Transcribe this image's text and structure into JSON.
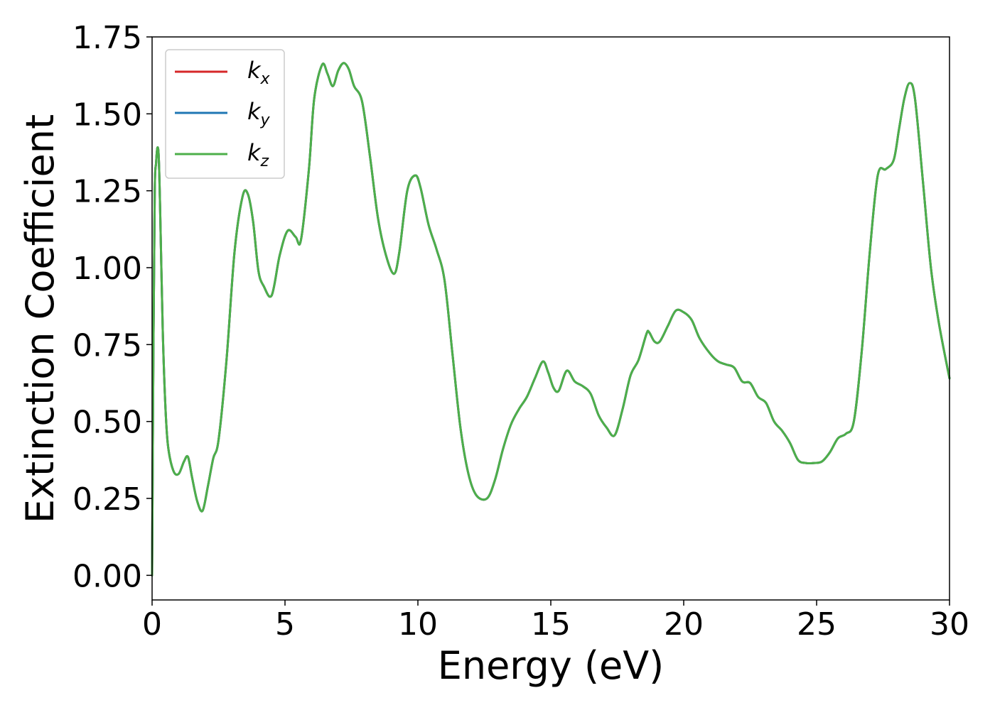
{
  "chart_data": {
    "type": "line",
    "xlabel": "Energy (eV)",
    "ylabel": "Extinction Coefficient",
    "xlim": [
      0,
      30
    ],
    "ylim": [
      -0.08,
      1.75
    ],
    "xticks": [
      0,
      5,
      10,
      15,
      20,
      25,
      30
    ],
    "xtick_labels": [
      "0",
      "5",
      "10",
      "15",
      "20",
      "25",
      "30"
    ],
    "yticks": [
      0.0,
      0.25,
      0.5,
      0.75,
      1.0,
      1.25,
      1.5,
      1.75
    ],
    "ytick_labels": [
      "0.00",
      "0.25",
      "0.50",
      "0.75",
      "1.00",
      "1.25",
      "1.50",
      "1.75"
    ],
    "grid": false,
    "legend_position": "top-left",
    "series": [
      {
        "name": "k",
        "subscript": "x",
        "color": "#d62728",
        "x": [
          0,
          0.05,
          0.1,
          0.15,
          0.2,
          0.25,
          0.3,
          0.4,
          0.5,
          0.6,
          0.8,
          1.0,
          1.2,
          1.35,
          1.5,
          1.7,
          1.9,
          2.1,
          2.3,
          2.5,
          2.8,
          3.1,
          3.4,
          3.6,
          3.8,
          4.0,
          4.2,
          4.5,
          4.8,
          5.1,
          5.4,
          5.6,
          5.9,
          6.1,
          6.4,
          6.6,
          6.8,
          7.0,
          7.2,
          7.4,
          7.6,
          7.9,
          8.2,
          8.5,
          8.8,
          9.1,
          9.3,
          9.6,
          9.9,
          10.1,
          10.4,
          10.7,
          11.0,
          11.3,
          11.6,
          11.9,
          12.2,
          12.6,
          12.9,
          13.2,
          13.5,
          13.8,
          14.1,
          14.4,
          14.7,
          14.9,
          15.1,
          15.3,
          15.6,
          15.9,
          16.2,
          16.5,
          16.8,
          17.1,
          17.4,
          17.7,
          18.0,
          18.3,
          18.6,
          18.7,
          18.9,
          19.1,
          19.4,
          19.7,
          20.0,
          20.3,
          20.6,
          21.0,
          21.3,
          21.6,
          21.9,
          22.2,
          22.5,
          22.8,
          23.1,
          23.4,
          23.7,
          24.0,
          24.3,
          24.6,
          24.9,
          25.2,
          25.5,
          25.8,
          26.1,
          26.4,
          26.7,
          27.0,
          27.3,
          27.6,
          27.9,
          28.1,
          28.3,
          28.5,
          28.7,
          29.0,
          29.3,
          29.6,
          30.0
        ],
        "y": [
          0.0,
          0.75,
          1.25,
          1.34,
          1.39,
          1.36,
          1.2,
          0.8,
          0.55,
          0.42,
          0.34,
          0.33,
          0.37,
          0.385,
          0.32,
          0.24,
          0.21,
          0.29,
          0.38,
          0.44,
          0.7,
          1.05,
          1.23,
          1.24,
          1.15,
          0.99,
          0.94,
          0.91,
          1.04,
          1.12,
          1.1,
          1.09,
          1.32,
          1.55,
          1.66,
          1.63,
          1.59,
          1.64,
          1.665,
          1.645,
          1.59,
          1.54,
          1.36,
          1.16,
          1.04,
          0.98,
          1.05,
          1.25,
          1.3,
          1.26,
          1.14,
          1.06,
          0.96,
          0.72,
          0.48,
          0.33,
          0.26,
          0.25,
          0.31,
          0.41,
          0.49,
          0.54,
          0.58,
          0.64,
          0.695,
          0.66,
          0.61,
          0.6,
          0.665,
          0.63,
          0.615,
          0.59,
          0.52,
          0.48,
          0.455,
          0.54,
          0.65,
          0.7,
          0.785,
          0.79,
          0.76,
          0.76,
          0.81,
          0.86,
          0.855,
          0.83,
          0.77,
          0.72,
          0.695,
          0.685,
          0.675,
          0.63,
          0.625,
          0.58,
          0.56,
          0.5,
          0.47,
          0.43,
          0.375,
          0.365,
          0.365,
          0.37,
          0.4,
          0.445,
          0.46,
          0.5,
          0.73,
          1.05,
          1.3,
          1.32,
          1.35,
          1.45,
          1.55,
          1.6,
          1.55,
          1.28,
          1.0,
          0.82,
          0.64
        ]
      },
      {
        "name": "k",
        "subscript": "y",
        "color": "#1f77b4",
        "x": [
          0,
          0.05,
          0.1,
          0.15,
          0.2,
          0.25,
          0.3,
          0.4,
          0.5,
          0.6,
          0.8,
          1.0,
          1.2,
          1.35,
          1.5,
          1.7,
          1.9,
          2.1,
          2.3,
          2.5,
          2.8,
          3.1,
          3.4,
          3.6,
          3.8,
          4.0,
          4.2,
          4.5,
          4.8,
          5.1,
          5.4,
          5.6,
          5.9,
          6.1,
          6.4,
          6.6,
          6.8,
          7.0,
          7.2,
          7.4,
          7.6,
          7.9,
          8.2,
          8.5,
          8.8,
          9.1,
          9.3,
          9.6,
          9.9,
          10.1,
          10.4,
          10.7,
          11.0,
          11.3,
          11.6,
          11.9,
          12.2,
          12.6,
          12.9,
          13.2,
          13.5,
          13.8,
          14.1,
          14.4,
          14.7,
          14.9,
          15.1,
          15.3,
          15.6,
          15.9,
          16.2,
          16.5,
          16.8,
          17.1,
          17.4,
          17.7,
          18.0,
          18.3,
          18.6,
          18.7,
          18.9,
          19.1,
          19.4,
          19.7,
          20.0,
          20.3,
          20.6,
          21.0,
          21.3,
          21.6,
          21.9,
          22.2,
          22.5,
          22.8,
          23.1,
          23.4,
          23.7,
          24.0,
          24.3,
          24.6,
          24.9,
          25.2,
          25.5,
          25.8,
          26.1,
          26.4,
          26.7,
          27.0,
          27.3,
          27.6,
          27.9,
          28.1,
          28.3,
          28.5,
          28.7,
          29.0,
          29.3,
          29.6,
          30.0
        ],
        "y": [
          0.0,
          0.75,
          1.25,
          1.34,
          1.39,
          1.36,
          1.2,
          0.8,
          0.55,
          0.42,
          0.34,
          0.33,
          0.37,
          0.385,
          0.32,
          0.24,
          0.21,
          0.29,
          0.38,
          0.44,
          0.7,
          1.05,
          1.23,
          1.24,
          1.15,
          0.99,
          0.94,
          0.91,
          1.04,
          1.12,
          1.1,
          1.09,
          1.32,
          1.55,
          1.66,
          1.63,
          1.59,
          1.64,
          1.665,
          1.645,
          1.59,
          1.54,
          1.36,
          1.16,
          1.04,
          0.98,
          1.05,
          1.25,
          1.3,
          1.26,
          1.14,
          1.06,
          0.96,
          0.72,
          0.48,
          0.33,
          0.26,
          0.25,
          0.31,
          0.41,
          0.49,
          0.54,
          0.58,
          0.64,
          0.695,
          0.66,
          0.61,
          0.6,
          0.665,
          0.63,
          0.615,
          0.59,
          0.52,
          0.48,
          0.455,
          0.54,
          0.65,
          0.7,
          0.785,
          0.79,
          0.76,
          0.76,
          0.81,
          0.86,
          0.855,
          0.83,
          0.77,
          0.72,
          0.695,
          0.685,
          0.675,
          0.63,
          0.625,
          0.58,
          0.56,
          0.5,
          0.47,
          0.43,
          0.375,
          0.365,
          0.365,
          0.37,
          0.4,
          0.445,
          0.46,
          0.5,
          0.73,
          1.05,
          1.3,
          1.32,
          1.35,
          1.45,
          1.55,
          1.6,
          1.55,
          1.28,
          1.0,
          0.82,
          0.64
        ]
      },
      {
        "name": "k",
        "subscript": "z",
        "color": "#4daf4a",
        "x": [
          0,
          0.05,
          0.1,
          0.15,
          0.2,
          0.25,
          0.3,
          0.4,
          0.5,
          0.6,
          0.8,
          1.0,
          1.2,
          1.35,
          1.5,
          1.7,
          1.9,
          2.1,
          2.3,
          2.5,
          2.8,
          3.1,
          3.4,
          3.6,
          3.8,
          4.0,
          4.2,
          4.5,
          4.8,
          5.1,
          5.4,
          5.6,
          5.9,
          6.1,
          6.4,
          6.6,
          6.8,
          7.0,
          7.2,
          7.4,
          7.6,
          7.9,
          8.2,
          8.5,
          8.8,
          9.1,
          9.3,
          9.6,
          9.9,
          10.1,
          10.4,
          10.7,
          11.0,
          11.3,
          11.6,
          11.9,
          12.2,
          12.6,
          12.9,
          13.2,
          13.5,
          13.8,
          14.1,
          14.4,
          14.7,
          14.9,
          15.1,
          15.3,
          15.6,
          15.9,
          16.2,
          16.5,
          16.8,
          17.1,
          17.4,
          17.7,
          18.0,
          18.3,
          18.6,
          18.7,
          18.9,
          19.1,
          19.4,
          19.7,
          20.0,
          20.3,
          20.6,
          21.0,
          21.3,
          21.6,
          21.9,
          22.2,
          22.5,
          22.8,
          23.1,
          23.4,
          23.7,
          24.0,
          24.3,
          24.6,
          24.9,
          25.2,
          25.5,
          25.8,
          26.1,
          26.4,
          26.7,
          27.0,
          27.3,
          27.6,
          27.9,
          28.1,
          28.3,
          28.5,
          28.7,
          29.0,
          29.3,
          29.6,
          30.0
        ],
        "y": [
          0.0,
          0.75,
          1.25,
          1.34,
          1.39,
          1.36,
          1.2,
          0.8,
          0.55,
          0.42,
          0.34,
          0.33,
          0.37,
          0.385,
          0.32,
          0.24,
          0.21,
          0.29,
          0.38,
          0.44,
          0.7,
          1.05,
          1.23,
          1.24,
          1.15,
          0.99,
          0.94,
          0.91,
          1.04,
          1.12,
          1.1,
          1.09,
          1.32,
          1.55,
          1.66,
          1.63,
          1.59,
          1.64,
          1.665,
          1.645,
          1.59,
          1.54,
          1.36,
          1.16,
          1.04,
          0.98,
          1.05,
          1.25,
          1.3,
          1.26,
          1.14,
          1.06,
          0.96,
          0.72,
          0.48,
          0.33,
          0.26,
          0.25,
          0.31,
          0.41,
          0.49,
          0.54,
          0.58,
          0.64,
          0.695,
          0.66,
          0.61,
          0.6,
          0.665,
          0.63,
          0.615,
          0.59,
          0.52,
          0.48,
          0.455,
          0.54,
          0.65,
          0.7,
          0.785,
          0.79,
          0.76,
          0.76,
          0.81,
          0.86,
          0.855,
          0.83,
          0.77,
          0.72,
          0.695,
          0.685,
          0.675,
          0.63,
          0.625,
          0.58,
          0.56,
          0.5,
          0.47,
          0.43,
          0.375,
          0.365,
          0.365,
          0.37,
          0.4,
          0.445,
          0.46,
          0.5,
          0.73,
          1.05,
          1.3,
          1.32,
          1.35,
          1.45,
          1.55,
          1.6,
          1.55,
          1.28,
          1.0,
          0.82,
          0.64
        ]
      }
    ]
  }
}
